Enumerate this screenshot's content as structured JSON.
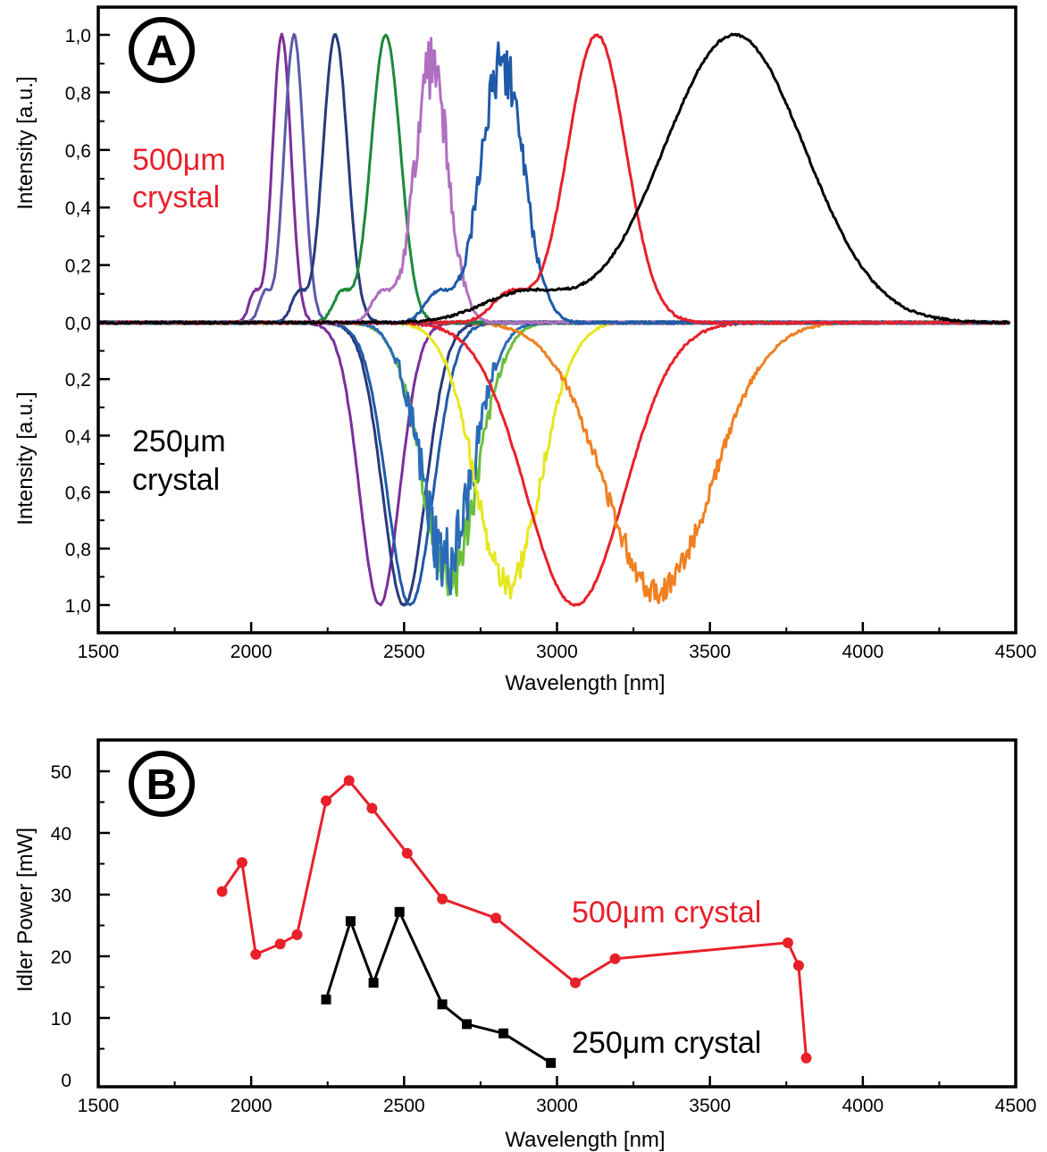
{
  "chart_data": [
    {
      "panel": "A",
      "type": "line",
      "xlabel": "Wavelength [nm]",
      "xlim": [
        1500,
        4500
      ],
      "x_ticks": [
        "1500",
        "2000",
        "2500",
        "3000",
        "3500",
        "4000",
        "4500"
      ],
      "top": {
        "ylabel": "Intensity [a.u.]",
        "ylim": [
          0,
          1.0
        ],
        "y_ticks": [
          "0,0",
          "0,2",
          "0,4",
          "0,6",
          "0,8",
          "1,0"
        ],
        "annotation": [
          "500μm",
          "crystal"
        ],
        "annotation_color": "#e8202a",
        "series": [
          {
            "color": "#7b2f9a",
            "peak": 2100,
            "width": 30,
            "noise": 0.0
          },
          {
            "color": "#5b5aa8",
            "peak": 2140,
            "width": 32,
            "noise": 0.0
          },
          {
            "color": "#273a7c",
            "peak": 2275,
            "width": 40,
            "noise": 0.0
          },
          {
            "color": "#1a8a3a",
            "peak": 2440,
            "width": 48,
            "noise": 0.0
          },
          {
            "color": "#b06fc0",
            "peak": 2590,
            "width": 55,
            "noise": 0.12
          },
          {
            "color": "#1f5aa8",
            "peak": 2820,
            "width": 70,
            "noise": 0.1
          },
          {
            "color": "#e8202a",
            "peak": 3130,
            "width": 95,
            "noise": 0.0
          },
          {
            "color": "#000000",
            "peak": 3580,
            "width": 230,
            "noise": 0.0
          }
        ]
      },
      "bottom": {
        "ylabel": "Intensity [a.u.]",
        "ylim": [
          1.0,
          0
        ],
        "y_ticks": [
          "0,2",
          "0,4",
          "0,6",
          "0,8",
          "1,0"
        ],
        "annotation": [
          "250μm",
          "crystal"
        ],
        "annotation_color": "#000000",
        "series": [
          {
            "color": "#7b2f9a",
            "peak": 2420,
            "width": 65,
            "noise": 0.0
          },
          {
            "color": "#273a7c",
            "peak": 2500,
            "width": 70,
            "noise": 0.0
          },
          {
            "color": "#1f5aa8",
            "peak": 2520,
            "width": 75,
            "noise": 0.0
          },
          {
            "color": "#6cbf3c",
            "peak": 2650,
            "width": 90,
            "noise": 0.1
          },
          {
            "color": "#2a6cb8",
            "peak": 2640,
            "width": 85,
            "noise": 0.14
          },
          {
            "color": "#e6e620",
            "peak": 2840,
            "width": 105,
            "noise": 0.06
          },
          {
            "color": "#e8202a",
            "peak": 3060,
            "width": 160,
            "noise": 0.0
          },
          {
            "color": "#f08020",
            "peak": 3330,
            "width": 175,
            "noise": 0.05
          }
        ]
      }
    },
    {
      "panel": "B",
      "type": "line",
      "xlabel": "Wavelength [nm]",
      "ylabel": "Idler Power [mW]",
      "xlim": [
        1500,
        4500
      ],
      "ylim": [
        0,
        55
      ],
      "x_ticks": [
        "1500",
        "2000",
        "2500",
        "3000",
        "3500",
        "4000",
        "4500"
      ],
      "y_ticks": [
        "0",
        "10",
        "20",
        "30",
        "40",
        "50"
      ],
      "series": [
        {
          "name": "500μm crystal",
          "color": "#e8202a",
          "marker": "circle",
          "x": [
            1905,
            1970,
            2015,
            2095,
            2150,
            2245,
            2320,
            2395,
            2510,
            2625,
            2800,
            3060,
            3190,
            3755,
            3790,
            3815
          ],
          "y": [
            30.5,
            35.2,
            20.3,
            22.0,
            23.5,
            45.2,
            48.5,
            44.0,
            36.7,
            29.3,
            26.2,
            15.7,
            19.6,
            22.2,
            18.5,
            3.5
          ]
        },
        {
          "name": "250μm crystal",
          "color": "#000000",
          "marker": "square",
          "x": [
            2245,
            2325,
            2400,
            2485,
            2625,
            2705,
            2825,
            2980
          ],
          "y": [
            13.0,
            25.7,
            15.7,
            27.2,
            12.2,
            9.0,
            7.5,
            2.7
          ]
        }
      ]
    }
  ],
  "panel_labels": {
    "a": "A",
    "b": "B"
  }
}
